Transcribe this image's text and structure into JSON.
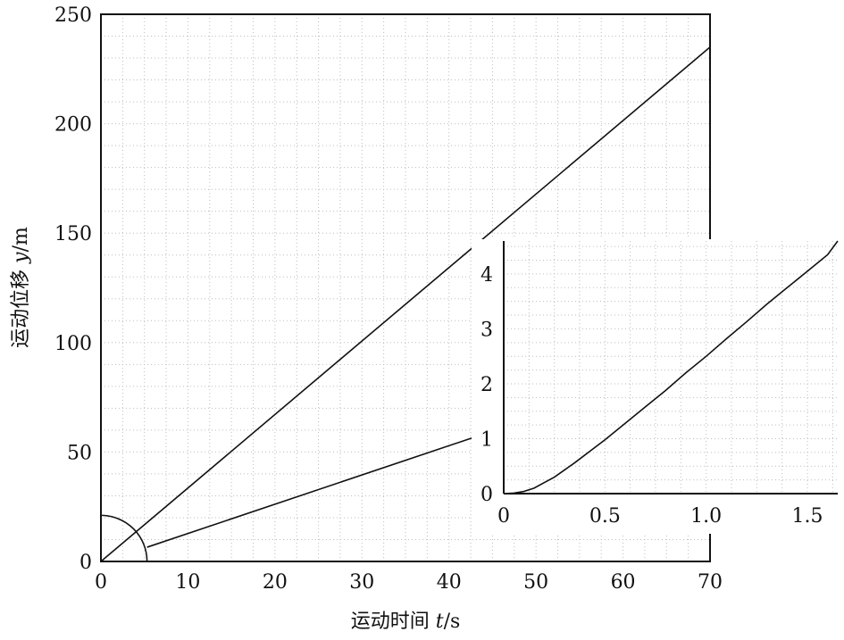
{
  "chart_data": [
    {
      "type": "line",
      "xlabel_prefix": "运动时间 ",
      "xlabel_var": "t",
      "xlabel_unit": "/s",
      "ylabel_prefix": "运动位移 ",
      "ylabel_var": "y",
      "ylabel_unit": "/m",
      "xlim": [
        0,
        70
      ],
      "ylim": [
        0,
        250
      ],
      "xticks": [
        0,
        10,
        20,
        30,
        40,
        50,
        60,
        70
      ],
      "yticks": [
        0,
        50,
        100,
        150,
        200,
        250
      ],
      "grid": true,
      "series": [
        {
          "x": [
            0,
            70
          ],
          "y": [
            0,
            235
          ]
        },
        {
          "x": [
            5.3,
            42.7
          ],
          "y": [
            6.5,
            56.5
          ]
        }
      ],
      "annotations": [
        {
          "type": "arc",
          "center": [
            0,
            0
          ],
          "radius_x": 5.3,
          "note": "magnified region"
        }
      ]
    },
    {
      "type": "line",
      "role": "inset",
      "xlim": [
        0,
        1.65
      ],
      "ylim": [
        0,
        4.6
      ],
      "xticks": [
        0,
        0.5,
        1.0,
        1.5
      ],
      "xtick_labels": [
        "0",
        "0.5",
        "1.0",
        "1.5"
      ],
      "yticks": [
        0,
        1,
        2,
        3,
        4
      ],
      "grid": true,
      "series": [
        {
          "x": [
            0,
            0.05,
            0.1,
            0.15,
            0.2,
            0.25,
            0.3,
            0.35,
            0.4,
            0.5,
            0.6,
            0.7,
            0.8,
            0.9,
            1.0,
            1.1,
            1.2,
            1.3,
            1.4,
            1.5,
            1.6,
            1.65
          ],
          "y": [
            0,
            0.01,
            0.04,
            0.1,
            0.2,
            0.3,
            0.43,
            0.56,
            0.7,
            0.98,
            1.28,
            1.58,
            1.88,
            2.2,
            2.5,
            2.82,
            3.13,
            3.45,
            3.75,
            4.05,
            4.35,
            4.6
          ]
        }
      ]
    }
  ]
}
